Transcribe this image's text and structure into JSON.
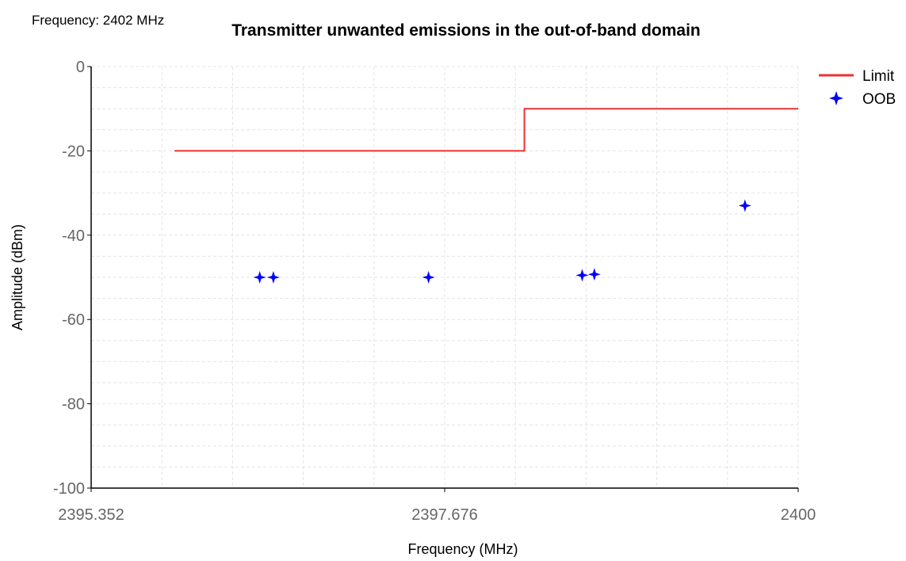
{
  "header": {
    "frequency_label": "Frequency: 2402 MHz"
  },
  "chart_data": {
    "type": "line",
    "title": "Transmitter unwanted emissions in the out-of-band domain",
    "xlabel": "Frequency (MHz)",
    "ylabel": "Amplitude (dBm)",
    "xlim": [
      2395.352,
      2400
    ],
    "ylim": [
      -100,
      0
    ],
    "x_ticks": [
      "2395.352",
      "2397.676",
      "2400"
    ],
    "y_ticks": [
      "0",
      "-20",
      "-40",
      "-60",
      "-80",
      "-100"
    ],
    "grid": true,
    "legend": "top-right",
    "series": [
      {
        "name": "Limit",
        "kind": "line",
        "color": "#f03030",
        "x": [
          2395.9,
          2398.2,
          2398.2,
          2400
        ],
        "y": [
          -20,
          -20,
          -10,
          -10
        ]
      },
      {
        "name": "OOB",
        "kind": "scatter",
        "color": "#0000ff",
        "x": [
          2396.46,
          2396.55,
          2397.57,
          2398.58,
          2398.66,
          2399.65
        ],
        "y": [
          -50,
          -50,
          -50,
          -49.5,
          -49.3,
          -33
        ]
      }
    ]
  }
}
